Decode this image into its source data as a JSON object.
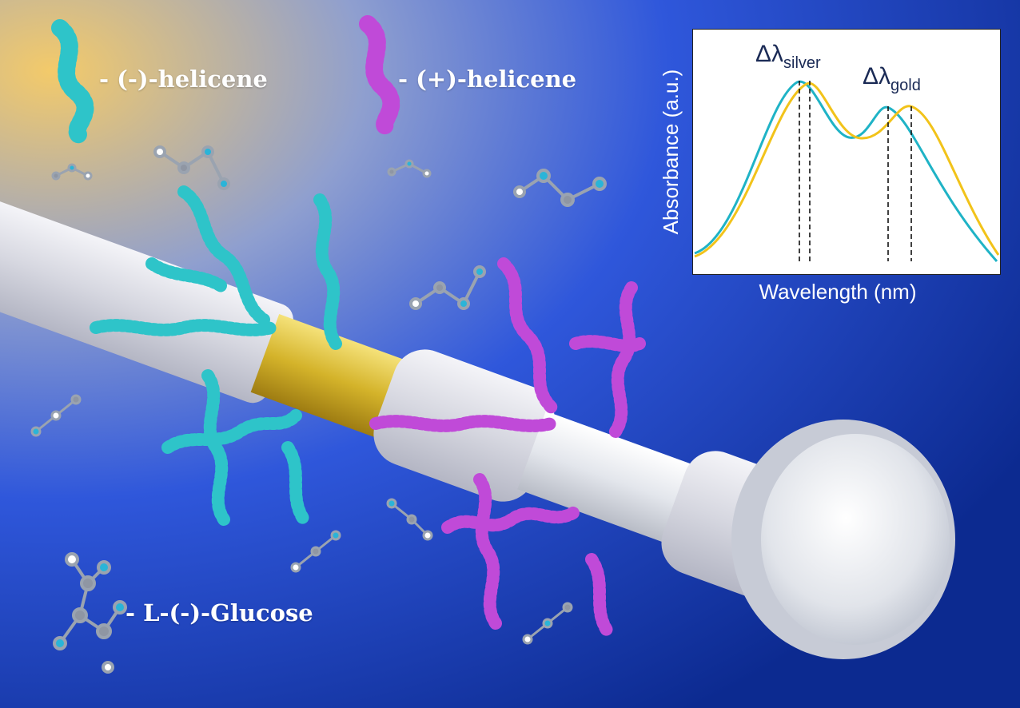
{
  "legend": {
    "minus_helicene": "- (-)-helicene",
    "plus_helicene": "- (+)-helicene",
    "glucose": "- L-(-)-Glucose"
  },
  "inset": {
    "ylabel": "Absorbance (a.u.)",
    "xlabel": "Wavelength (nm)",
    "delta_symbol": "Δλ",
    "silver_subscript": "silver",
    "gold_subscript": "gold"
  },
  "colors": {
    "background_start": "#f2c868",
    "background_end": "#0d2c95",
    "minus_helicene": "#2ec4c9",
    "plus_helicene": "#c04ad8",
    "gold_segment": "#d7b62c",
    "silver_segment": "#e6e9ee",
    "tube": "#dcdde5",
    "curve_teal": "#1fb3c6",
    "curve_yellow": "#f2c31a"
  }
}
